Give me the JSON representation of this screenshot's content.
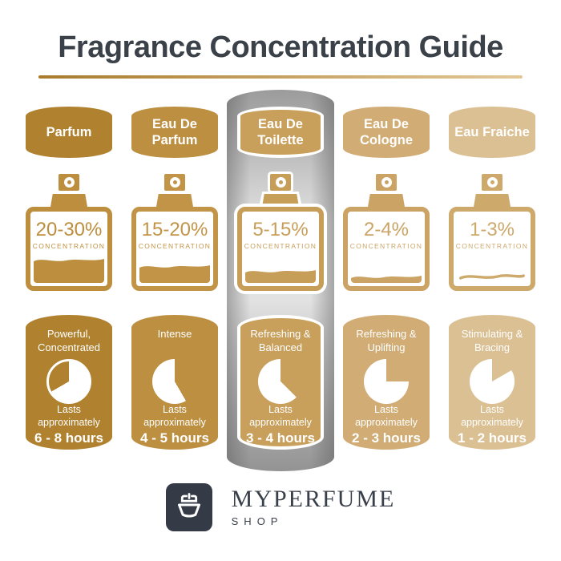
{
  "title": "Fragrance Concentration Guide",
  "title_color": "#3b4149",
  "underline": {
    "from": "#a87b2d",
    "to": "#e3c896"
  },
  "labels": {
    "concentration": "CONCENTRATION",
    "lasts": "Lasts approximately"
  },
  "columns": [
    {
      "name": "Parfum",
      "concentration_range": "20-30%",
      "fill_level": 36,
      "fill_style": "filled",
      "description": "Powerful, Concentrated",
      "duration": "6 - 8 hours",
      "clock": {
        "gap_start_deg": 240,
        "gap_end_deg": 360,
        "ring": true
      },
      "accent_color": "#b0812f",
      "bottle_color": "#bd8e3e",
      "highlighted": false
    },
    {
      "name": "Eau De Parfum",
      "concentration_range": "15-20%",
      "fill_level": 28,
      "fill_style": "filled",
      "description": "Intense",
      "duration": "4 - 5 hours",
      "clock": {
        "gap_start_deg": 0,
        "gap_end_deg": 150,
        "ring": false
      },
      "accent_color": "#bd8f41",
      "bottle_color": "#c29447",
      "highlighted": false
    },
    {
      "name": "Eau De Toilette",
      "concentration_range": "5-15%",
      "fill_level": 21,
      "fill_style": "filled",
      "description": "Refreshing & Balanced",
      "duration": "3 - 4 hours",
      "clock": {
        "gap_start_deg": 0,
        "gap_end_deg": 135,
        "ring": false
      },
      "accent_color": "#c89f5b",
      "bottle_color": "#c79e58",
      "highlighted": true
    },
    {
      "name": "Eau De Cologne",
      "concentration_range": "2-4%",
      "fill_level": 14,
      "fill_style": "filled",
      "description": "Refreshing & Uplifting",
      "duration": "2 - 3 hours",
      "clock": {
        "gap_start_deg": 0,
        "gap_end_deg": 90,
        "ring": false
      },
      "accent_color": "#d1ac74",
      "bottle_color": "#cba465",
      "highlighted": false
    },
    {
      "name": "Eau Fraiche",
      "concentration_range": "1-3%",
      "fill_level": 6,
      "fill_style": "line",
      "description": "Stimulating & Bracing",
      "duration": "1 - 2 hours",
      "clock": {
        "gap_start_deg": 0,
        "gap_end_deg": 60,
        "ring": false
      },
      "accent_color": "#dbc094",
      "bottle_color": "#cda96c",
      "highlighted": false
    }
  ],
  "highlight_panel": {
    "top": "#9b9b9b",
    "mid": "#e2e2e2",
    "bottom": "#939393"
  },
  "brand": {
    "name": "MYPERFUME",
    "sub": "SHOP",
    "icon": "perfume-bottle-icon",
    "box_color": "#353b46",
    "text_color": "#39404a"
  }
}
